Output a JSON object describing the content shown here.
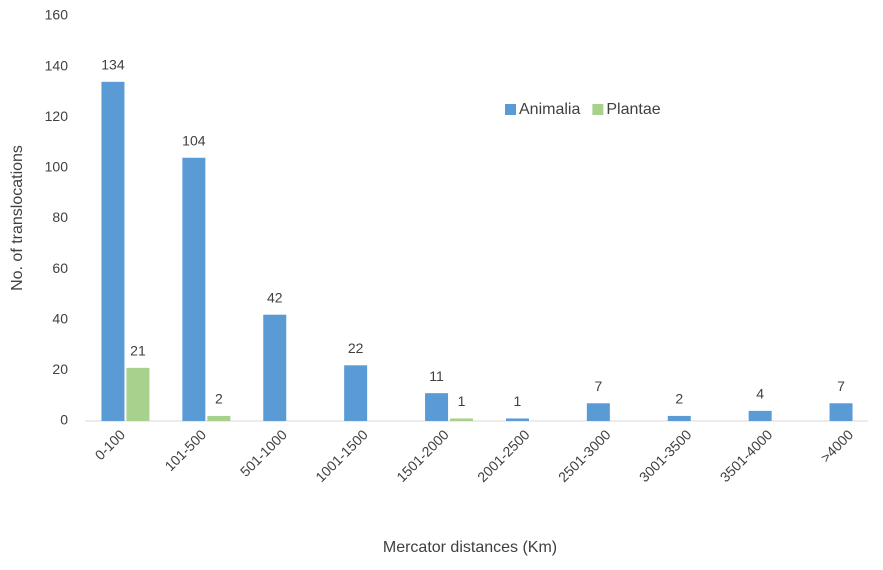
{
  "chart_data": {
    "type": "bar",
    "x_label": "Mercator distances (Km)",
    "y_label": "No. of translocations",
    "categories": [
      "0-100",
      "101-500",
      "501-1000",
      "1001-1500",
      "1501-2000",
      "2001-2500",
      "2501-3000",
      "3001-3500",
      "3501-4000",
      ">4000"
    ],
    "series": [
      {
        "name": "Animalia",
        "color": "#5b9bd5",
        "values": [
          134,
          104,
          42,
          22,
          11,
          1,
          7,
          2,
          4,
          7
        ]
      },
      {
        "name": "Plantae",
        "color": "#a9d18e",
        "values": [
          21,
          2,
          null,
          null,
          1,
          null,
          null,
          null,
          null,
          null
        ]
      }
    ],
    "ylim": [
      0,
      160
    ],
    "yticks": [
      0,
      20,
      40,
      60,
      80,
      100,
      120,
      140,
      160
    ],
    "grid": false,
    "legend": "top-right"
  }
}
